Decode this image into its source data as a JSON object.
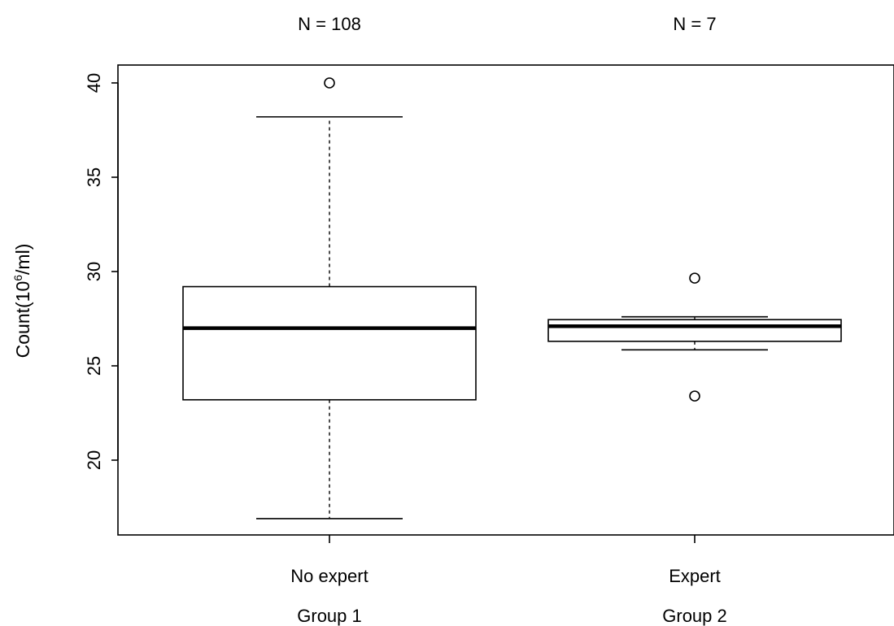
{
  "chart_data": {
    "type": "boxplot",
    "title": "",
    "xlabel": "",
    "ylabel": "Count(10",
    "ylabel_superscript": "6",
    "ylabel_suffix": "/ml)",
    "ylim": [
      16.5,
      41
    ],
    "yticks": [
      20,
      25,
      30,
      35,
      40
    ],
    "grid": false,
    "groups": [
      {
        "label": "No expert",
        "sublabel": "Group 1",
        "n_label": "N = 108",
        "whisker_low": 16.9,
        "q1": 23.2,
        "median": 27.0,
        "q3": 29.2,
        "whisker_high": 38.2,
        "outliers": [
          40.0
        ]
      },
      {
        "label": "Expert",
        "sublabel": "Group 2",
        "n_label": "N = 7",
        "whisker_low": 25.85,
        "q1": 26.3,
        "median": 27.1,
        "q3": 27.45,
        "whisker_high": 27.6,
        "outliers": [
          29.65,
          23.4
        ]
      }
    ]
  }
}
